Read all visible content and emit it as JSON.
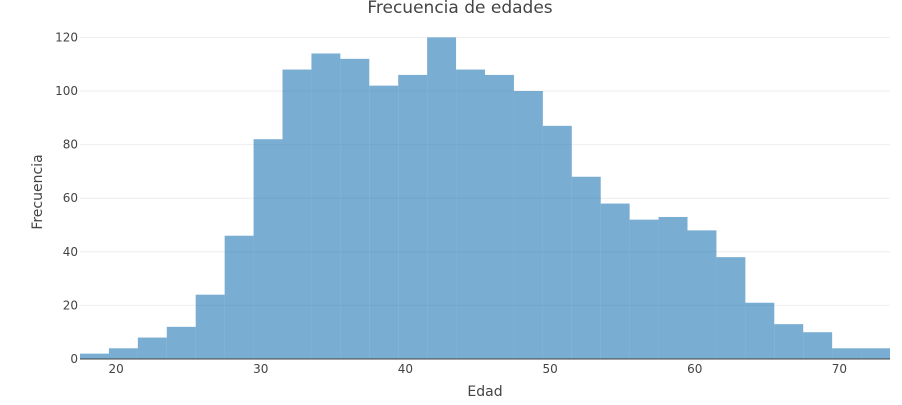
{
  "chart_data": {
    "type": "bar",
    "subtype": "histogram",
    "title": "Frecuencia de edades",
    "xlabel": "Edad",
    "ylabel": "Frecuencia",
    "xlim": [
      17.5,
      73.5
    ],
    "ylim": [
      0,
      125
    ],
    "bin_width": 2,
    "bin_start": 17.5,
    "values": [
      2,
      4,
      8,
      12,
      24,
      46,
      82,
      108,
      114,
      112,
      102,
      106,
      120,
      108,
      106,
      100,
      87,
      68,
      58,
      52,
      53,
      48,
      38,
      21,
      13,
      10,
      4,
      4
    ],
    "x_ticks": [
      20,
      30,
      40,
      50,
      60,
      70
    ],
    "y_ticks": [
      0,
      20,
      40,
      60,
      80,
      100,
      120
    ],
    "color": "#1f77b4",
    "grid": "horizontal",
    "legend": "none"
  }
}
